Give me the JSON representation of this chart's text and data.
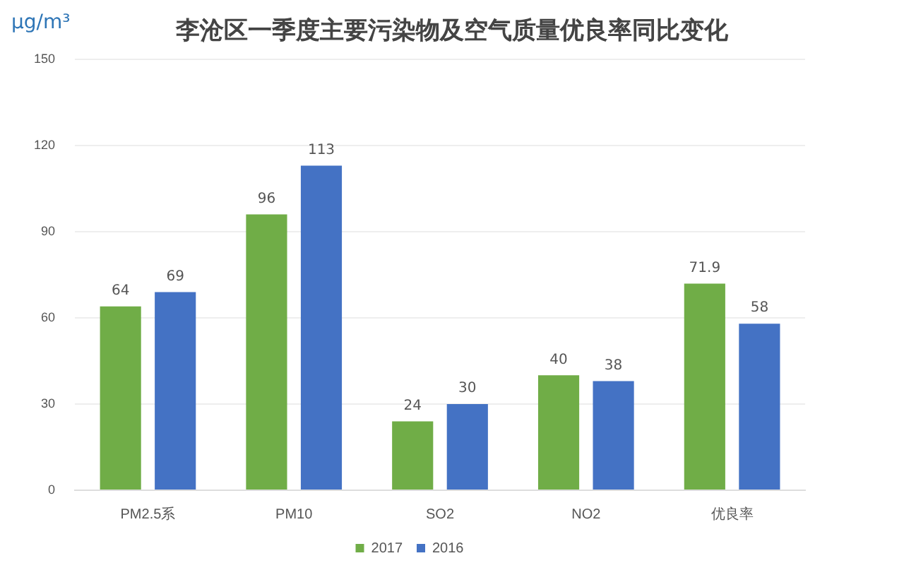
{
  "chart_data": {
    "type": "bar",
    "title": "李沧区一季度主要污染物及空气质量优良率同比变化",
    "ylabel": "μg/m³",
    "categories": [
      "PM2.5系",
      "PM10",
      "SO2",
      "NO2",
      "优良率"
    ],
    "series": [
      {
        "name": "2017",
        "color": "#70ad47",
        "values": [
          64,
          96,
          24,
          40,
          71.9
        ]
      },
      {
        "name": "2016",
        "color": "#4472c4",
        "values": [
          69,
          113,
          30,
          38,
          58
        ]
      }
    ],
    "ylim": [
      0,
      150
    ],
    "yticks": [
      0,
      30,
      60,
      90,
      120,
      150
    ],
    "grid": "y",
    "legend": "bottom",
    "data_labels": true
  }
}
